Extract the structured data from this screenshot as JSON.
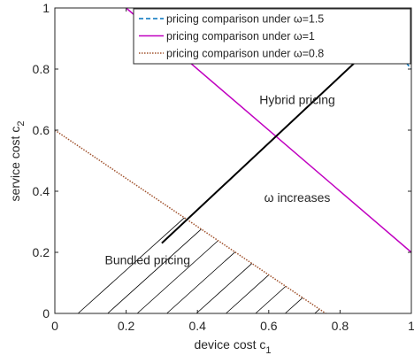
{
  "chart_data": {
    "type": "line",
    "xlabel": "device cost c",
    "xlabel_sub": "1",
    "ylabel": "service cost c",
    "ylabel_sub": "2",
    "xlim": [
      0,
      1
    ],
    "ylim": [
      0,
      1
    ],
    "xticks": [
      0,
      0.2,
      0.4,
      0.6,
      0.8,
      1
    ],
    "yticks": [
      0,
      0.2,
      0.4,
      0.6,
      0.8,
      1
    ],
    "xtick_labels": [
      "0",
      "0.2",
      "0.4",
      "0.6",
      "0.8",
      "1"
    ],
    "ytick_labels": [
      "0",
      "0.2",
      "0.4",
      "0.6",
      "0.8",
      "1"
    ],
    "grid": false,
    "legend_position": "top-right",
    "series": [
      {
        "name": "pricing comparison under ω=1.5",
        "color": "#0072bd",
        "style": "dashed",
        "x": [
          0.86,
          1.0
        ],
        "y": [
          1.0,
          0.8
        ]
      },
      {
        "name": "pricing comparison under ω=1",
        "color": "#c000c0",
        "style": "solid",
        "x": [
          0.2,
          1.0
        ],
        "y": [
          1.0,
          0.2
        ]
      },
      {
        "name": "pricing comparison under ω=0.8",
        "color": "#a0522d",
        "style": "dotted",
        "x": [
          0.0,
          0.76
        ],
        "y": [
          0.6,
          0.0
        ]
      }
    ],
    "hatched_region": {
      "label": "Bundled pricing",
      "boundary_series": 2
    },
    "arrow": {
      "from": [
        0.3,
        0.23
      ],
      "to": [
        0.955,
        0.945
      ]
    },
    "annotations": [
      {
        "text": "Hybrid pricing",
        "x": 0.68,
        "y": 0.7
      },
      {
        "text": "ω increases",
        "x": 0.68,
        "y": 0.38
      },
      {
        "text": "Bundled pricing",
        "x": 0.26,
        "y": 0.175
      }
    ]
  }
}
